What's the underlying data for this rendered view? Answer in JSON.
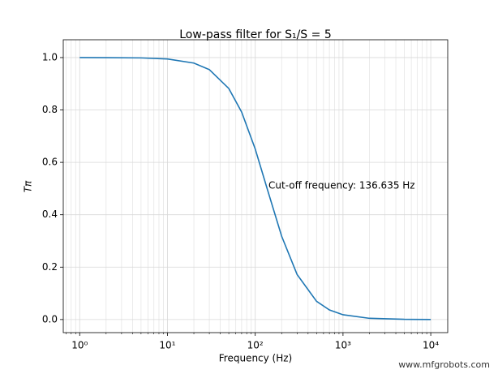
{
  "chart_data": {
    "type": "line",
    "title": "Low-pass filter for S₁/S = 5",
    "xlabel": "Frequency (Hz)",
    "ylabel": "Tπ",
    "annotation": "Cut-off frequency: 136.635 Hz",
    "watermark": "www.mfgrobots.com",
    "xscale": "log",
    "grid": true,
    "xlim": [
      0.65,
      15600
    ],
    "ylim": [
      -0.05,
      1.068
    ],
    "xticks": [
      {
        "value": 1,
        "label": "10⁰"
      },
      {
        "value": 10,
        "label": "10¹"
      },
      {
        "value": 100,
        "label": "10²"
      },
      {
        "value": 1000,
        "label": "10³"
      },
      {
        "value": 10000,
        "label": "10⁴"
      }
    ],
    "xminorticks": [
      0.7,
      0.8,
      0.9,
      2,
      3,
      4,
      5,
      6,
      7,
      8,
      9,
      20,
      30,
      40,
      50,
      60,
      70,
      80,
      90,
      200,
      300,
      400,
      500,
      600,
      700,
      800,
      900,
      2000,
      3000,
      4000,
      5000,
      6000,
      7000,
      8000,
      9000
    ],
    "yticks": [
      {
        "value": 0,
        "label": "0.0"
      },
      {
        "value": 0.2,
        "label": "0.2"
      },
      {
        "value": 0.4,
        "label": "0.4"
      },
      {
        "value": 0.6,
        "label": "0.6"
      },
      {
        "value": 0.8,
        "label": "0.8"
      },
      {
        "value": 1,
        "label": "1.0"
      }
    ],
    "series": [
      {
        "color": "#1f77b4",
        "x": [
          1,
          2,
          5,
          10,
          20,
          30,
          50,
          70,
          100,
          136.635,
          200,
          300,
          500,
          700,
          1000,
          2000,
          5000,
          10000
        ],
        "values": [
          1.0,
          0.9998,
          0.9987,
          0.9947,
          0.979,
          0.954,
          0.882,
          0.792,
          0.651,
          0.5,
          0.318,
          0.172,
          0.0695,
          0.0367,
          0.0183,
          0.00464,
          0.00075,
          0.00019
        ]
      }
    ]
  }
}
